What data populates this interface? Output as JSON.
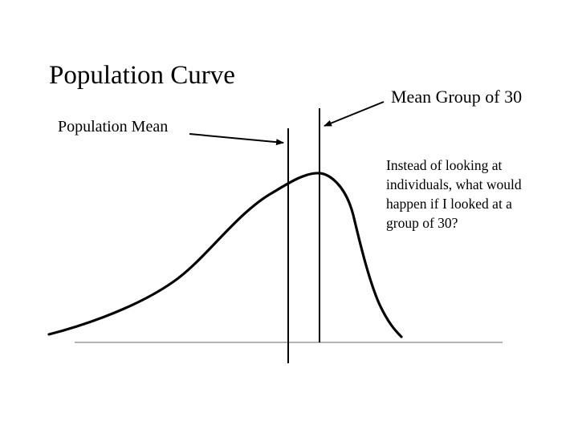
{
  "slide": {
    "title": "Population Curve",
    "mean_group_label": "Mean Group of 30",
    "population_mean_label": "Population Mean",
    "note_lines": [
      "Instead of looking at",
      "individuals, what would",
      "happen if I looked at a",
      "group of 30?"
    ]
  },
  "colors": {
    "curve": "#000000",
    "axis": "#b3b3b3",
    "text": "#000000",
    "background": "#ffffff"
  }
}
